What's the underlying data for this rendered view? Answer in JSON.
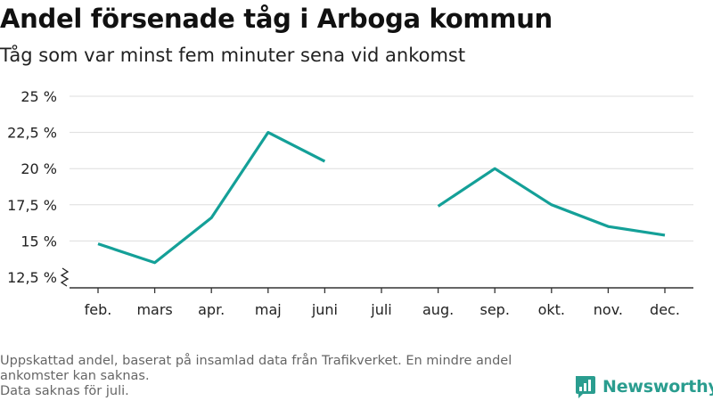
{
  "header": {
    "title": "Andel försenade tåg i Arboga kommun",
    "subtitle": "Tåg som var minst fem minuter sena vid ankomst"
  },
  "chart_data": {
    "type": "line",
    "title": "Andel försenade tåg i Arboga kommun",
    "subtitle": "Tåg som var minst fem minuter sena vid ankomst",
    "categories": [
      "feb.",
      "mars",
      "apr.",
      "maj",
      "juni",
      "juli",
      "aug.",
      "sep.",
      "okt.",
      "nov.",
      "dec."
    ],
    "series": [
      {
        "values": [
          14.8,
          13.5,
          16.6,
          22.5,
          20.5,
          null,
          17.4,
          20.0,
          17.5,
          16.0,
          15.4
        ]
      }
    ],
    "y_ticks": [
      12.5,
      15,
      17.5,
      20,
      22.5,
      25
    ],
    "y_tick_labels": [
      "12,5 %",
      "15 %",
      "17,5 %",
      "20 %",
      "22,5 %",
      "25 %"
    ],
    "ylim": [
      12.5,
      25
    ],
    "y_axis_break": true,
    "grid": "horizontal",
    "line_color": "#14a098",
    "grid_color": "#dddddd"
  },
  "footnote": {
    "line1": "Uppskattad andel, baserat på insamlad data från Trafikverket. En mindre andel ankomster kan saknas.",
    "line2": "Data saknas för juli."
  },
  "logo": {
    "text": "Newsworthy",
    "icon": "newsworthy-bar-chart-icon",
    "color": "#2a9d8f"
  }
}
